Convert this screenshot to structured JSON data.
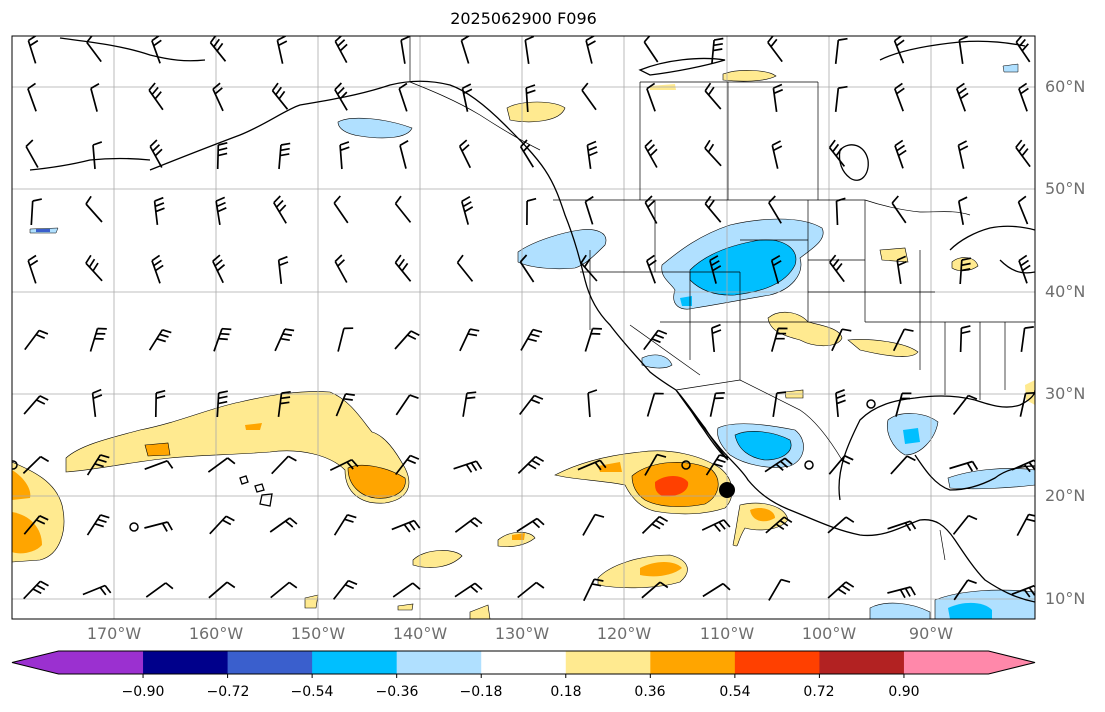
{
  "title": "2025062900 F096",
  "lat_labels": [
    "60°N",
    "50°N",
    "40°N",
    "30°N",
    "20°N",
    "10°N"
  ],
  "lon_labels": [
    "170°W",
    "160°W",
    "150°W",
    "140°W",
    "130°W",
    "120°W",
    "110°W",
    "100°W",
    "90°W"
  ],
  "colorbar": {
    "tick_labels": [
      "−0.90",
      "−0.72",
      "−0.54",
      "−0.36",
      "−0.18",
      "0.18",
      "0.36",
      "0.54",
      "0.72",
      "0.90"
    ],
    "colors": [
      "#9b30d0",
      "#00008b",
      "#3a5fcd",
      "#00bfff",
      "#b0e0ff",
      "#ffffff",
      "#ffea90",
      "#ffa500",
      "#ff4000",
      "#b22222",
      "#ff88aa"
    ]
  },
  "map": {
    "extent_lon": [
      -180,
      -80
    ],
    "extent_lat": [
      8,
      65
    ],
    "anomaly_colors": {
      "light_yellow": "#ffea90",
      "orange": "#ffa500",
      "red_orange": "#ff4000",
      "light_blue": "#b0e0ff",
      "blue": "#00bfff"
    }
  }
}
